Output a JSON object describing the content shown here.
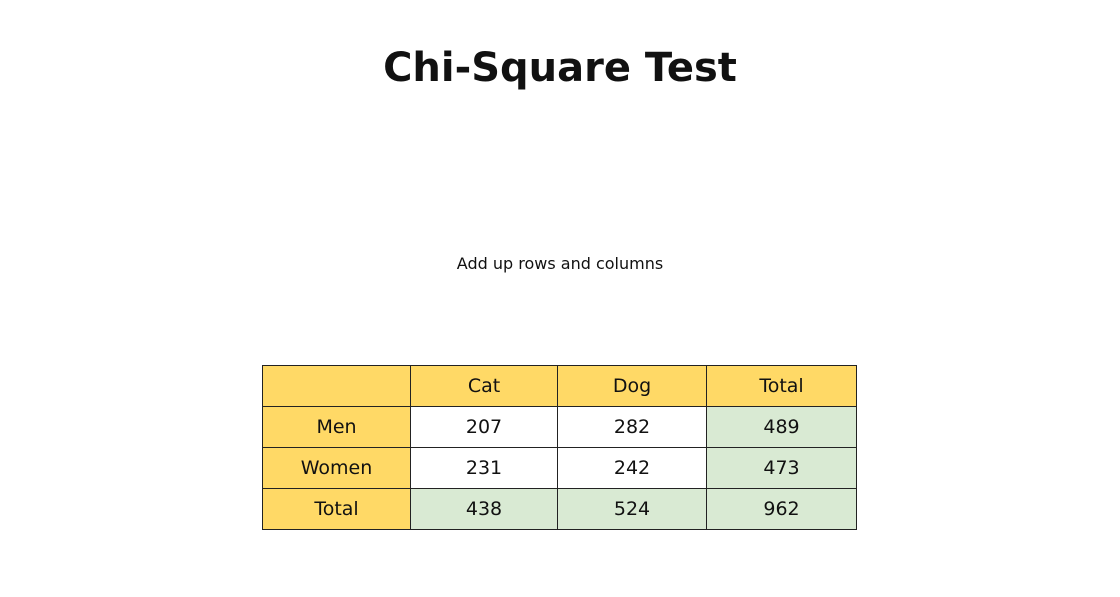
{
  "title": "Chi-Square Test",
  "subtitle": "Add up rows and columns",
  "table": {
    "corner": "",
    "columns": [
      "Cat",
      "Dog",
      "Total"
    ],
    "rows": [
      {
        "label": "Men",
        "values": [
          "207",
          "282",
          "489"
        ]
      },
      {
        "label": "Women",
        "values": [
          "231",
          "242",
          "473"
        ]
      },
      {
        "label": "Total",
        "values": [
          "438",
          "524",
          "962"
        ]
      }
    ]
  },
  "colors": {
    "header_fill": "#ffd966",
    "total_fill": "#d9ead3",
    "cell_fill": "#ffffff",
    "border": "#222222"
  }
}
